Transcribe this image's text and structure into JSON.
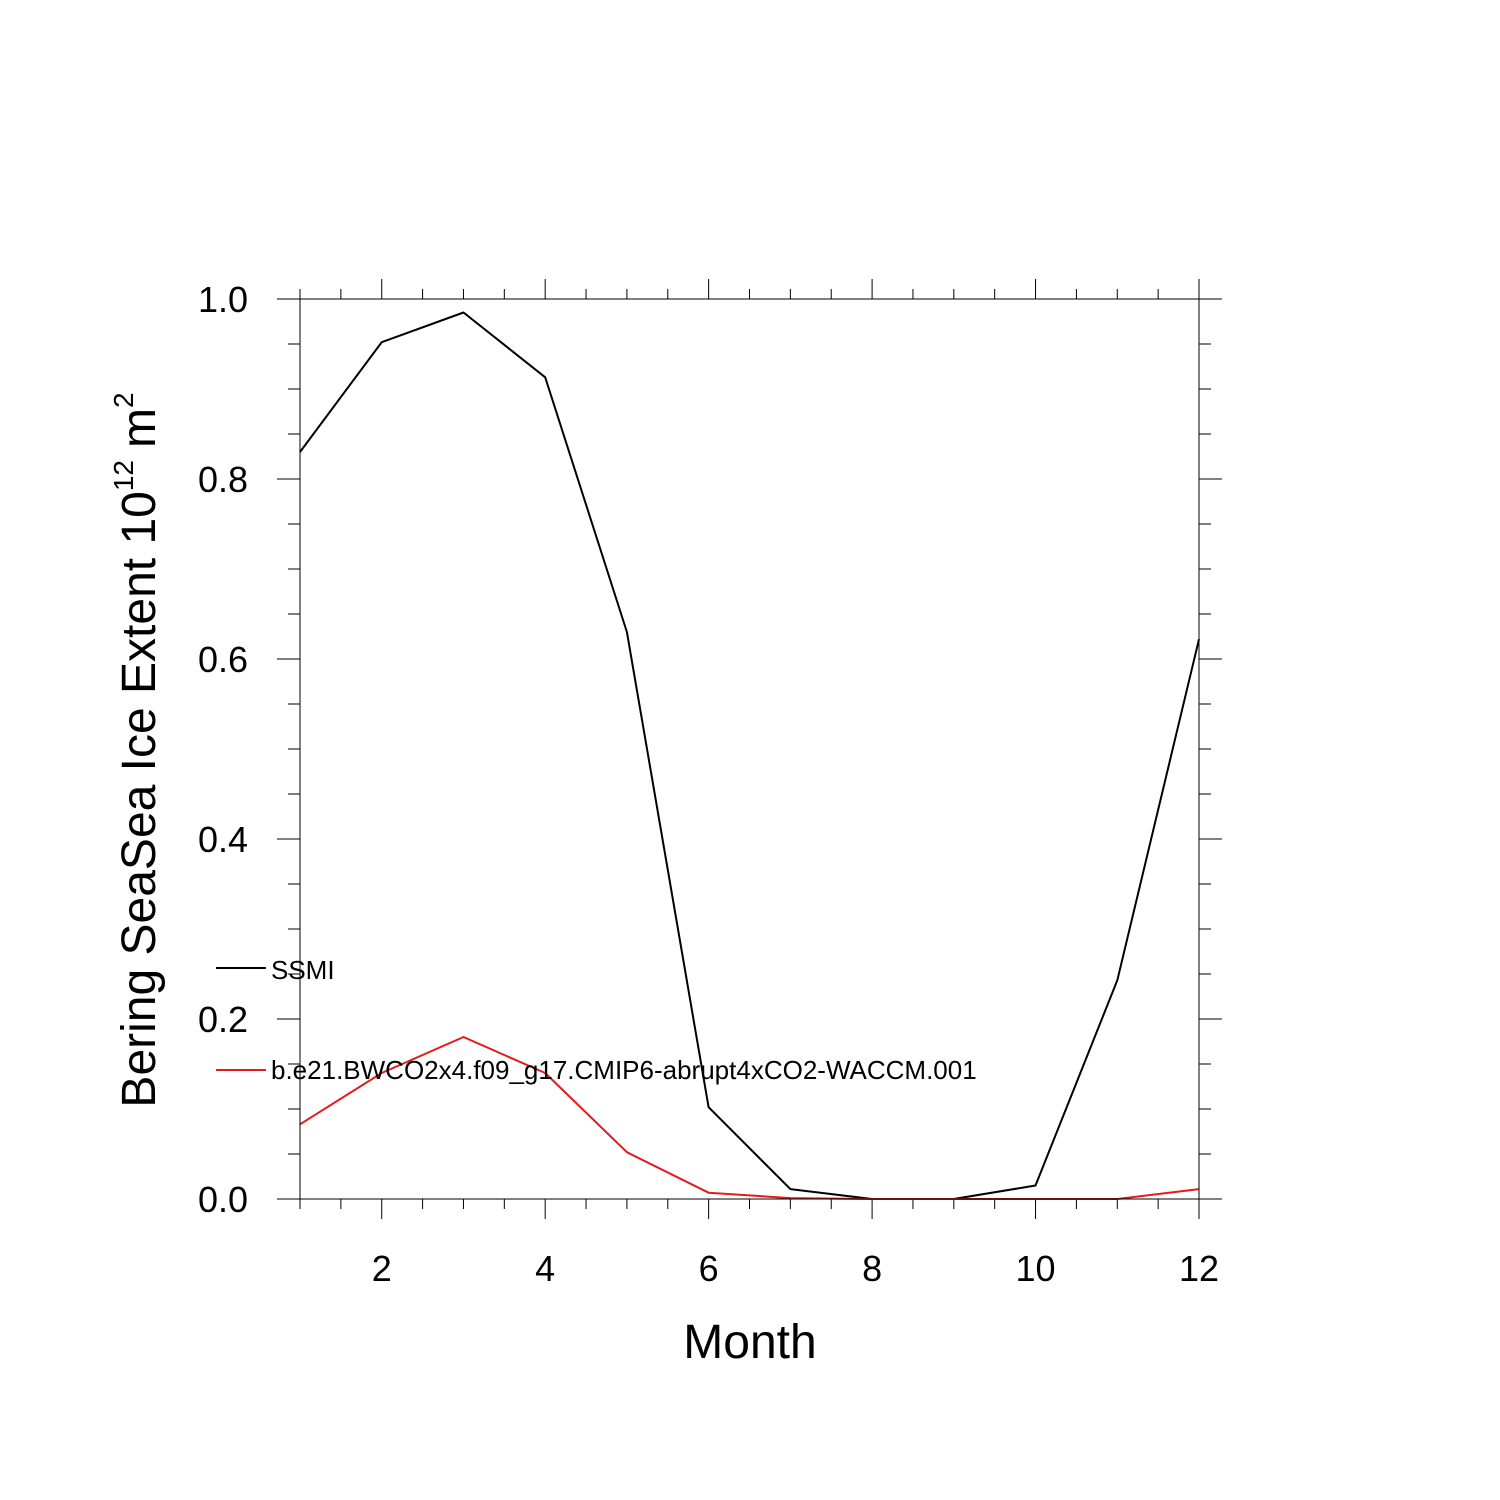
{
  "chart_data": {
    "type": "line",
    "title": "",
    "xlabel": "Month",
    "ylabel": "Bering SeaSea Ice Extent 10",
    "ylabel_exponent": "12",
    "ylabel_unit": "m",
    "ylabel_unit_exponent": "2",
    "xlim": [
      1,
      12
    ],
    "ylim": [
      0.0,
      1.0
    ],
    "x_ticks": [
      2,
      4,
      6,
      8,
      10,
      12
    ],
    "x_tick_labels": [
      "2",
      "4",
      "6",
      "8",
      "10",
      "12"
    ],
    "y_ticks": [
      0.0,
      0.2,
      0.4,
      0.6,
      0.8,
      1.0
    ],
    "y_tick_labels": [
      "0.0",
      "0.2",
      "0.4",
      "0.6",
      "0.8",
      "1.0"
    ],
    "grid": false,
    "legend_position": "lower-left",
    "x": [
      1,
      2,
      3,
      4,
      5,
      6,
      7,
      8,
      9,
      10,
      11,
      12
    ],
    "series": [
      {
        "name": "SSMI",
        "color": "#000000",
        "values": [
          0.83,
          0.952,
          0.985,
          0.913,
          0.63,
          0.102,
          0.011,
          0.0,
          0.0,
          0.015,
          0.243,
          0.622
        ]
      },
      {
        "name": "b.e21.BWCO2x4.f09_g17.CMIP6-abrupt4xCO2-WACCM.001",
        "color": "#e41a1c",
        "values": [
          0.083,
          0.14,
          0.18,
          0.14,
          0.052,
          0.007,
          0.001,
          0.0,
          0.0,
          0.0,
          0.0,
          0.011
        ]
      }
    ]
  }
}
